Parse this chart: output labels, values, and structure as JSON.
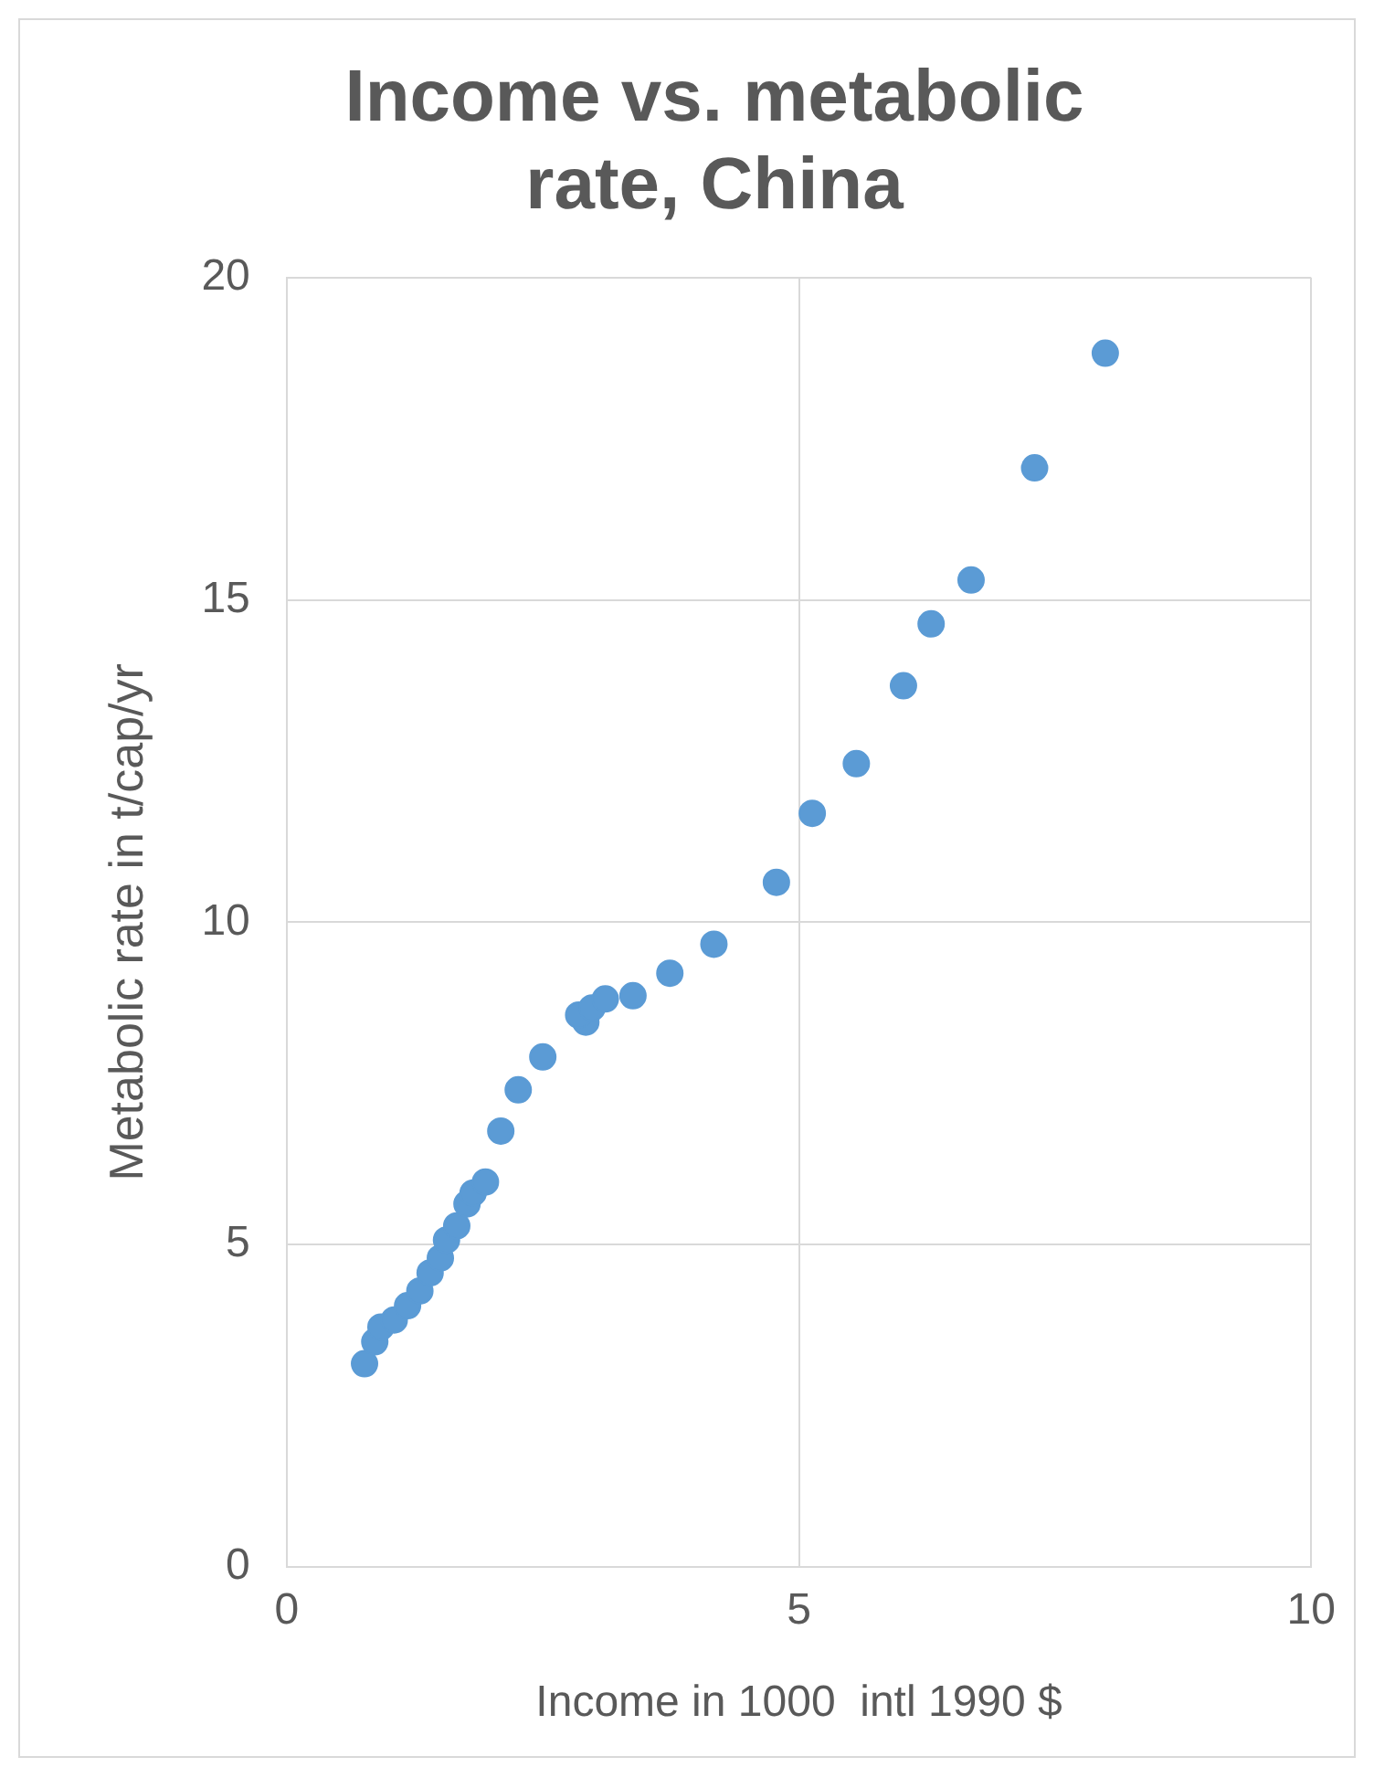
{
  "chart_data": {
    "type": "scatter",
    "title": "Income vs. metabolic rate, China",
    "xlabel": "Income in 1000  intl 1990 $",
    "ylabel": "Metabolic rate in t/cap/yr",
    "x": [
      0.76,
      0.86,
      0.92,
      1.05,
      1.18,
      1.3,
      1.4,
      1.5,
      1.56,
      1.66,
      1.76,
      1.82,
      1.94,
      2.09,
      2.26,
      2.5,
      2.92,
      2.85,
      2.98,
      3.11,
      3.38,
      3.74,
      4.17,
      4.78,
      5.13,
      5.56,
      6.02,
      6.29,
      6.68,
      7.3,
      7.99
    ],
    "values": [
      3.15,
      3.49,
      3.72,
      3.83,
      4.05,
      4.28,
      4.56,
      4.79,
      5.07,
      5.29,
      5.63,
      5.8,
      5.97,
      6.76,
      7.4,
      7.91,
      8.45,
      8.56,
      8.67,
      8.81,
      8.86,
      9.21,
      9.66,
      10.62,
      11.69,
      12.46,
      13.67,
      14.63,
      15.31,
      17.05,
      18.83
    ],
    "color": "#5b9bd5",
    "marker": "circle",
    "xlim": [
      0,
      10
    ],
    "ylim": [
      0,
      20
    ],
    "xticks": [
      0,
      5,
      10
    ],
    "yticks": [
      0,
      5,
      10,
      15,
      20
    ],
    "grid": true,
    "legend": false
  }
}
